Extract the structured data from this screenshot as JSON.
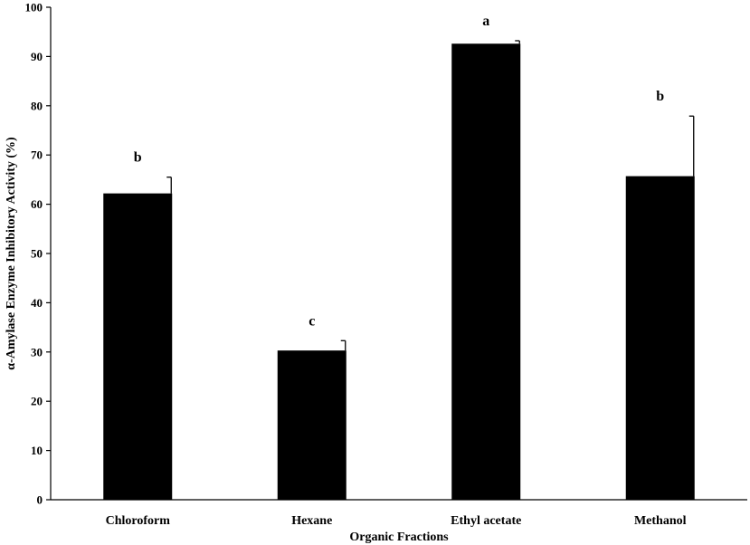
{
  "chart_data": {
    "type": "bar",
    "title": "",
    "xlabel": "Organic Fractions",
    "ylabel": "α-Amylase Enzyme Inhibitory Activity (%)",
    "ylim": [
      0,
      100
    ],
    "yticks": [
      0,
      10,
      20,
      30,
      40,
      50,
      60,
      70,
      80,
      90,
      100
    ],
    "ytick_labels": [
      "0",
      "10",
      "20",
      "30",
      "40",
      "50",
      "60",
      "70",
      "80",
      "90",
      "100"
    ],
    "categories": [
      "Chloroform",
      "Hexane",
      "Ethyl acetate",
      "Methanol"
    ],
    "values": [
      62.2,
      30.3,
      92.6,
      65.7
    ],
    "errors": [
      3.3,
      2.0,
      0.6,
      12.2
    ],
    "significance": [
      "b",
      "c",
      "a",
      "b"
    ],
    "grid": false,
    "bar_color": "#000000"
  }
}
